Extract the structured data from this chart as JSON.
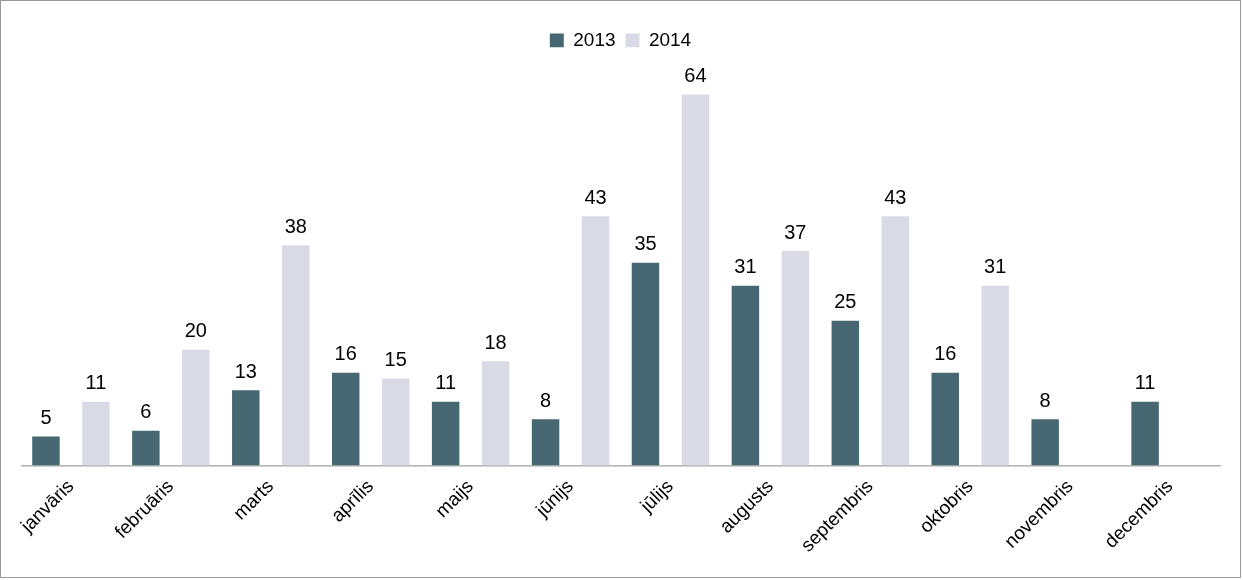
{
  "chart_data": {
    "type": "bar",
    "categories": [
      "janvāris",
      "februāris",
      "marts",
      "aprīlis",
      "maijs",
      "jūnijs",
      "jūlijs",
      "augusts",
      "septembris",
      "oktobris",
      "novembris",
      "decembris"
    ],
    "series": [
      {
        "name": "2013",
        "color": "#476872",
        "values": [
          5,
          6,
          13,
          16,
          11,
          8,
          35,
          31,
          25,
          16,
          8,
          11
        ]
      },
      {
        "name": "2014",
        "color": "#d9dae6",
        "values": [
          11,
          20,
          38,
          15,
          18,
          43,
          64,
          37,
          43,
          31,
          null,
          null
        ]
      }
    ],
    "data_labels": true,
    "legend": "top",
    "grid": false
  }
}
